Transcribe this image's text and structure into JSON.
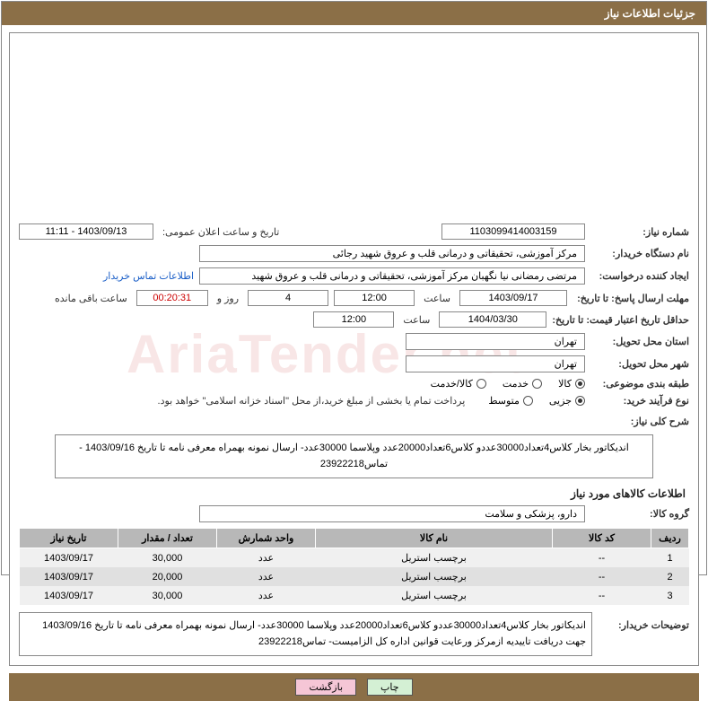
{
  "header": {
    "title": "جزئیات اطلاعات نیاز"
  },
  "form": {
    "need_no_label": "شماره نیاز:",
    "need_no": "1103099414003159",
    "announce_label": "تاریخ و ساعت اعلان عمومی:",
    "announce_value": "1403/09/13 - 11:11",
    "buyer_org_label": "نام دستگاه خریدار:",
    "buyer_org": "مرکز آموزشی، تحقیقاتی و درمانی قلب و عروق شهید رجائی",
    "requester_label": "ایجاد کننده درخواست:",
    "requester": "مرتضی رمضانی نیا نگهبان مرکز آموزشی، تحقیقاتی و درمانی قلب و عروق شهید",
    "contact_link": "اطلاعات تماس خریدار",
    "resp_deadline_label": "مهلت ارسال پاسخ: تا تاریخ:",
    "resp_deadline_date": "1403/09/17",
    "time_label": "ساعت",
    "resp_deadline_time": "12:00",
    "days_remain": "4",
    "days_label": "روز و",
    "time_remain": "00:20:31",
    "remain_label": "ساعت باقی مانده",
    "price_validity_label": "حداقل تاریخ اعتبار قیمت: تا تاریخ:",
    "price_validity_date": "1404/03/30",
    "price_validity_time": "12:00",
    "delivery_province_label": "استان محل تحویل:",
    "delivery_province": "تهران",
    "delivery_city_label": "شهر محل تحویل:",
    "delivery_city": "تهران",
    "category_label": "طبقه بندی موضوعی:",
    "cat_goods": "کالا",
    "cat_service": "خدمت",
    "cat_both": "کالا/خدمت",
    "purchase_type_label": "نوع فرآیند خرید:",
    "pt_partial": "جزیی",
    "pt_medium": "متوسط",
    "payment_note": "پرداخت تمام یا بخشی از مبلغ خرید،از محل \"اسناد خزانه اسلامی\" خواهد بود.",
    "overview_label": "شرح کلی نیاز:",
    "overview_text": "اندیکاتور بخار کلاس4تعداد30000عددو کلاس6تعداد20000عدد وپلاسما 30000عدد- ارسال نمونه بهمراه معرفی نامه تا تاریخ 1403/09/16 - تماس23922218",
    "section_items": "اطلاعات کالاهای مورد نیاز",
    "group_label": "گروه کالا:",
    "group_value": "دارو، پزشکی و سلامت",
    "buyer_notes_label": "توضیحات خریدار:",
    "buyer_notes_text": "اندیکاتور بخار کلاس4تعداد30000عددو کلاس6تعداد20000عدد وپلاسما 30000عدد- ارسال نمونه بهمراه معرفی نامه تا تاریخ 1403/09/16 جهت دریافت تاییدیه ازمرکز ورعایت قوانین اداره کل الزامیست- تماس23922218"
  },
  "table": {
    "headers": {
      "row": "ردیف",
      "code": "کد کالا",
      "name": "نام کالا",
      "unit": "واحد شمارش",
      "qty": "تعداد / مقدار",
      "date": "تاریخ نیاز"
    },
    "rows": [
      {
        "n": "1",
        "code": "--",
        "name": "برچسب استریل",
        "unit": "عدد",
        "qty": "30,000",
        "date": "1403/09/17"
      },
      {
        "n": "2",
        "code": "--",
        "name": "برچسب استریل",
        "unit": "عدد",
        "qty": "20,000",
        "date": "1403/09/17"
      },
      {
        "n": "3",
        "code": "--",
        "name": "برچسب استریل",
        "unit": "عدد",
        "qty": "30,000",
        "date": "1403/09/17"
      }
    ]
  },
  "footer": {
    "print": "چاپ",
    "back": "بازگشت"
  },
  "colors": {
    "header_bg": "#8b6f47",
    "th_bg": "#b8b8b8",
    "row_odd": "#f0f0f0",
    "row_even": "#e0e0e0",
    "btn_print": "#d4f0d4",
    "btn_back": "#f5c6d6",
    "link": "#1a5ec7"
  }
}
